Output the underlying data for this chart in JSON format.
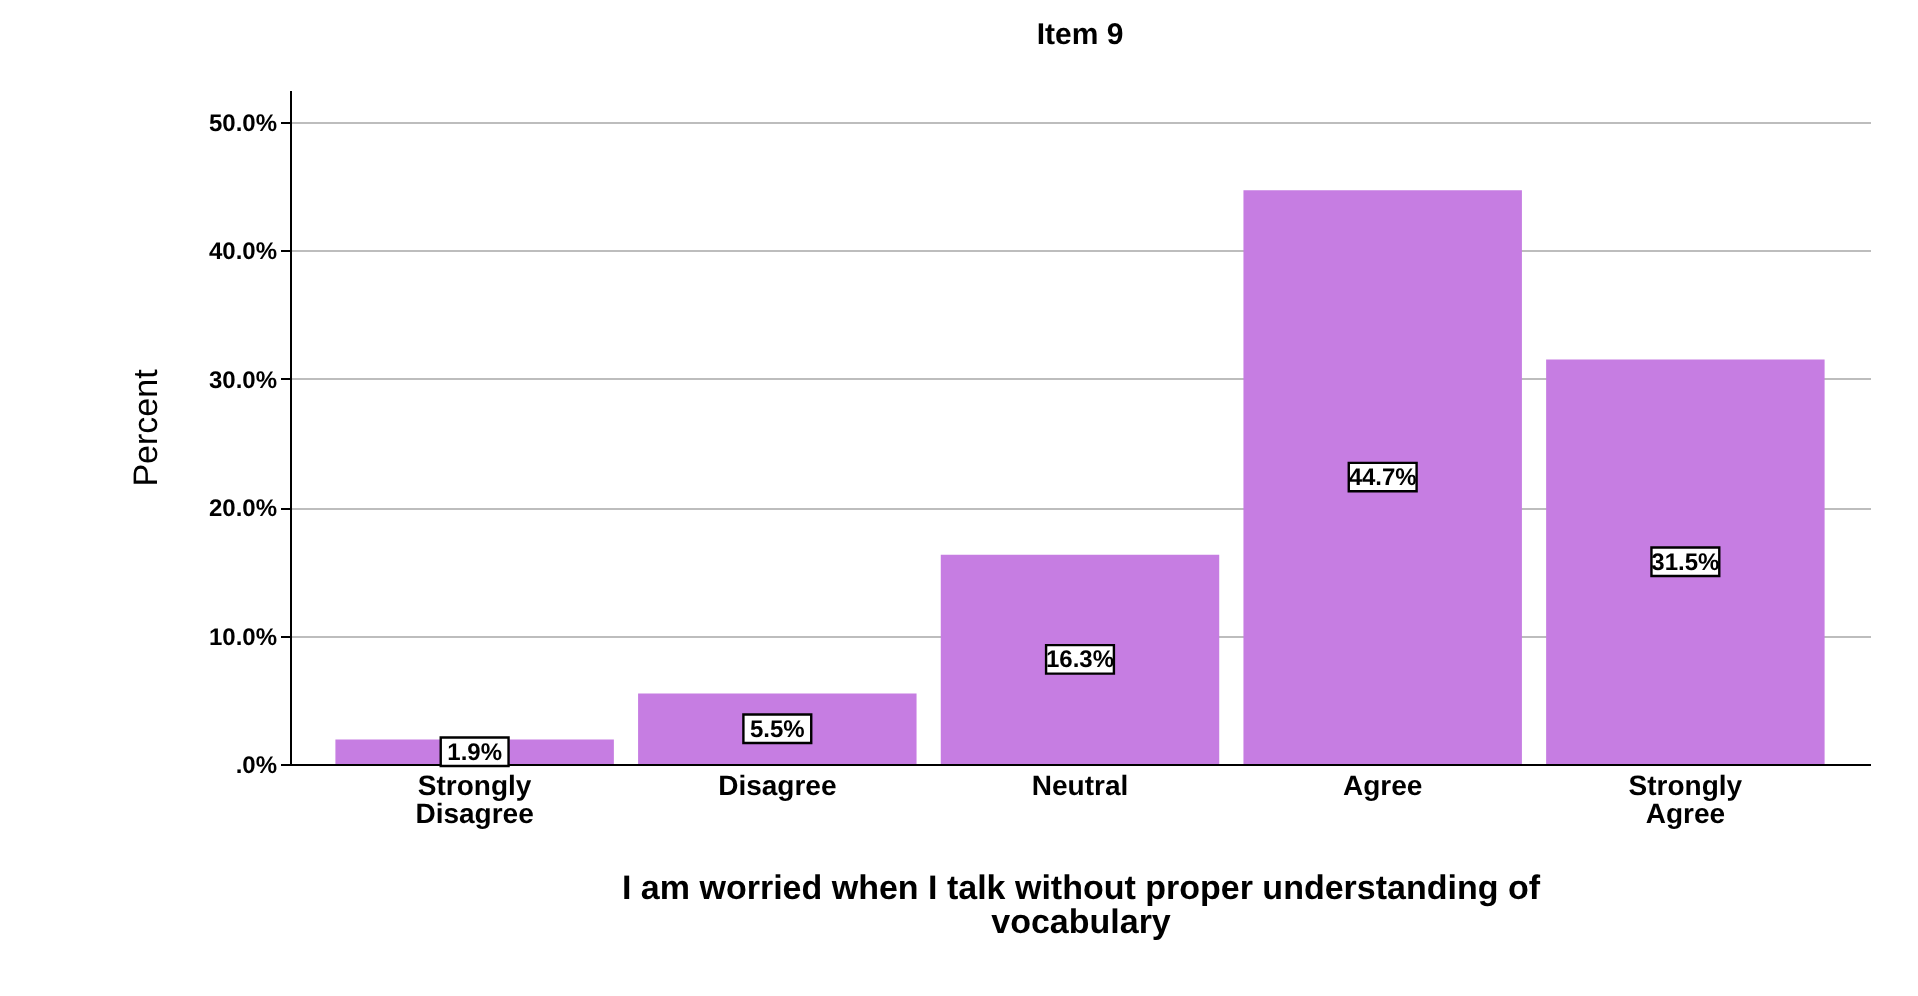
{
  "chart_data": {
    "type": "bar",
    "title": "Item 9",
    "xlabel": "I am worried when I talk without proper understanding of vocabulary",
    "ylabel": "Percent",
    "categories": [
      "Strongly Disagree",
      "Disagree",
      "Neutral",
      "Agree",
      "Strongly Agree"
    ],
    "values": [
      1.9,
      5.5,
      16.3,
      44.7,
      31.5
    ],
    "value_labels": [
      "1.9%",
      "5.5%",
      "16.3%",
      "44.7%",
      "31.5%"
    ],
    "color": "#c67de2",
    "ylim": [
      0,
      52.5
    ],
    "yticks": [
      {
        "value": 0,
        "label": ".0%"
      },
      {
        "value": 10,
        "label": "10.0%"
      },
      {
        "value": 20,
        "label": "20.0%"
      },
      {
        "value": 30,
        "label": "30.0%"
      },
      {
        "value": 40,
        "label": "40.0%"
      },
      {
        "value": 50,
        "label": "50.0%"
      }
    ],
    "grid": "y"
  }
}
